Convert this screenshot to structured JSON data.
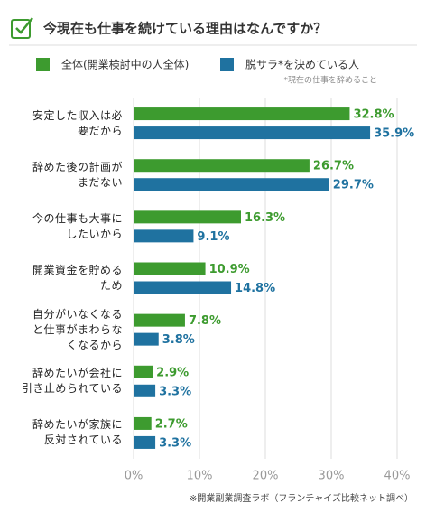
{
  "chart_data": {
    "type": "bar",
    "orientation": "horizontal",
    "title": "今現在も仕事を続けている理由はなんですか？",
    "note": "*現在の仕事を辞めること",
    "source": "※開業副業調査ラボ（フランチャイズ比較ネット調べ）",
    "categories": [
      "安定した収入は必\n要だから",
      "辞めた後の計画が\nまだない",
      "今の仕事も大事に\nしたいから",
      "開業資金を貯める\nため",
      "自分がいなくなる\nと仕事がまわらな\nくなるから",
      "辞めたいが会社に\n引き止められている",
      "辞めたいが家族に\n反対されている"
    ],
    "series": [
      {
        "name": "全体(開業検討中の人全体)",
        "color": "#3d9b2f",
        "values": [
          32.8,
          26.7,
          16.3,
          10.9,
          7.8,
          2.9,
          2.7
        ],
        "value_labels": [
          "32.8%",
          "26.7%",
          "16.3%",
          "10.9%",
          "7.8%",
          "2.9%",
          "2.7%"
        ]
      },
      {
        "name": "脱サラ*を決めている人",
        "color": "#1f72a0",
        "values": [
          35.9,
          29.7,
          9.1,
          14.8,
          3.8,
          3.3,
          3.3
        ],
        "value_labels": [
          "35.9%",
          "29.7%",
          "9.1%",
          "14.8%",
          "3.8%",
          "3.3%",
          "3.3%"
        ]
      }
    ],
    "xlim": [
      0,
      40
    ],
    "xticks": [
      {
        "value": 0,
        "label": "0%"
      },
      {
        "value": 10,
        "label": "10%"
      },
      {
        "value": 20,
        "label": "20%"
      },
      {
        "value": 30,
        "label": "30%"
      },
      {
        "value": 40,
        "label": "40%"
      }
    ],
    "grid": true
  }
}
